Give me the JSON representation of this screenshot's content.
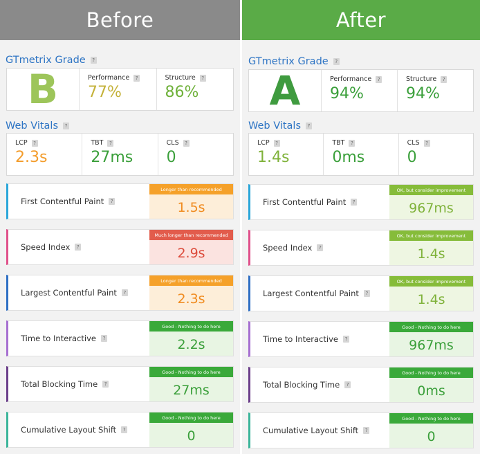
{
  "before": {
    "banner": "Before",
    "grade_title": "GTmetrix Grade",
    "grade": "B",
    "performance_label": "Performance",
    "performance": "77%",
    "structure_label": "Structure",
    "structure": "86%",
    "vitals_title": "Web Vitals",
    "vitals": [
      {
        "label": "LCP",
        "value": "2.3s",
        "color": "#f39c2b"
      },
      {
        "label": "TBT",
        "value": "27ms",
        "color": "#3a9f3a"
      },
      {
        "label": "CLS",
        "value": "0",
        "color": "#3a9f3a"
      }
    ],
    "metrics": [
      {
        "name": "First Contentful Paint",
        "tag": "Longer than recommended",
        "value": "1.5s",
        "status": "orange",
        "accent": "#2aa6d9"
      },
      {
        "name": "Speed Index",
        "tag": "Much longer than recommended",
        "value": "2.9s",
        "status": "red",
        "accent": "#e0508a"
      },
      {
        "name": "Largest Contentful Paint",
        "tag": "Longer than recommended",
        "value": "2.3s",
        "status": "orange",
        "accent": "#2e6fc4"
      },
      {
        "name": "Time to Interactive",
        "tag": "Good - Nothing to do here",
        "value": "2.2s",
        "status": "green",
        "accent": "#a66fd1"
      },
      {
        "name": "Total Blocking Time",
        "tag": "Good - Nothing to do here",
        "value": "27ms",
        "status": "green",
        "accent": "#6b3e8a"
      },
      {
        "name": "Cumulative Layout Shift",
        "tag": "Good - Nothing to do here",
        "value": "0",
        "status": "green",
        "accent": "#3bb59a"
      }
    ]
  },
  "after": {
    "banner": "After",
    "grade_title": "GTmetrix Grade",
    "grade": "A",
    "performance_label": "Performance",
    "performance": "94%",
    "structure_label": "Structure",
    "structure": "94%",
    "vitals_title": "Web Vitals",
    "vitals": [
      {
        "label": "LCP",
        "value": "1.4s",
        "color": "#7fb23a"
      },
      {
        "label": "TBT",
        "value": "0ms",
        "color": "#3a9f3a"
      },
      {
        "label": "CLS",
        "value": "0",
        "color": "#3a9f3a"
      }
    ],
    "metrics": [
      {
        "name": "First Contentful Paint",
        "tag": "OK, but consider improvement",
        "value": "967ms",
        "status": "lime",
        "accent": "#2aa6d9"
      },
      {
        "name": "Speed Index",
        "tag": "OK, but consider improvement",
        "value": "1.4s",
        "status": "lime",
        "accent": "#e0508a"
      },
      {
        "name": "Largest Contentful Paint",
        "tag": "OK, but consider improvement",
        "value": "1.4s",
        "status": "lime",
        "accent": "#2e6fc4"
      },
      {
        "name": "Time to Interactive",
        "tag": "Good - Nothing to do here",
        "value": "967ms",
        "status": "green",
        "accent": "#a66fd1"
      },
      {
        "name": "Total Blocking Time",
        "tag": "Good - Nothing to do here",
        "value": "0ms",
        "status": "green",
        "accent": "#6b3e8a"
      },
      {
        "name": "Cumulative Layout Shift",
        "tag": "Good - Nothing to do here",
        "value": "0",
        "status": "green",
        "accent": "#3bb59a"
      }
    ]
  },
  "help_glyph": "?",
  "colors": {
    "performance_before": "#c4b23a",
    "structure_before": "#6fb13a",
    "performance_after": "#3a9f3a",
    "structure_after": "#3a9f3a"
  }
}
